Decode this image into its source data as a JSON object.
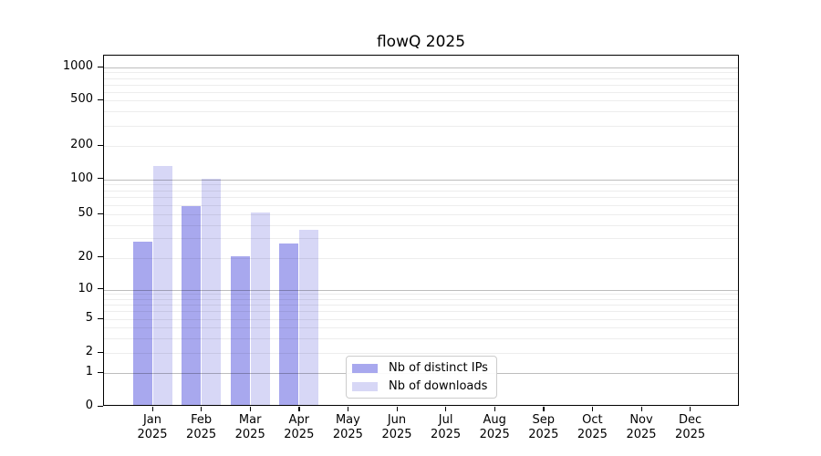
{
  "chart_data": {
    "type": "bar",
    "title": "flowQ 2025",
    "categories": [
      {
        "month": "Jan",
        "year": "2025"
      },
      {
        "month": "Feb",
        "year": "2025"
      },
      {
        "month": "Mar",
        "year": "2025"
      },
      {
        "month": "Apr",
        "year": "2025"
      },
      {
        "month": "May",
        "year": "2025"
      },
      {
        "month": "Jun",
        "year": "2025"
      },
      {
        "month": "Jul",
        "year": "2025"
      },
      {
        "month": "Aug",
        "year": "2025"
      },
      {
        "month": "Sep",
        "year": "2025"
      },
      {
        "month": "Oct",
        "year": "2025"
      },
      {
        "month": "Nov",
        "year": "2025"
      },
      {
        "month": "Dec",
        "year": "2025"
      }
    ],
    "series": [
      {
        "name": "Nb of distinct IPs",
        "color": "#a8a8ee",
        "values": [
          27,
          57,
          20,
          26,
          0,
          0,
          0,
          0,
          0,
          0,
          0,
          0
        ]
      },
      {
        "name": "Nb of downloads",
        "color": "#d7d7f6",
        "values": [
          127,
          97,
          50,
          35,
          0,
          0,
          0,
          0,
          0,
          0,
          0,
          0
        ]
      }
    ],
    "y_scale": "symlog",
    "y_ticks": [
      0,
      1,
      2,
      5,
      10,
      20,
      50,
      100,
      200,
      500,
      1000
    ],
    "y_major_gridlines": [
      1,
      10,
      100,
      1000
    ],
    "ylim": [
      0,
      1270
    ],
    "grid": "horizontal log minor + major lines drawn over bars",
    "legend_position": "lower center inside plot",
    "axis_color": "#000000",
    "background_color": "#ffffff"
  }
}
